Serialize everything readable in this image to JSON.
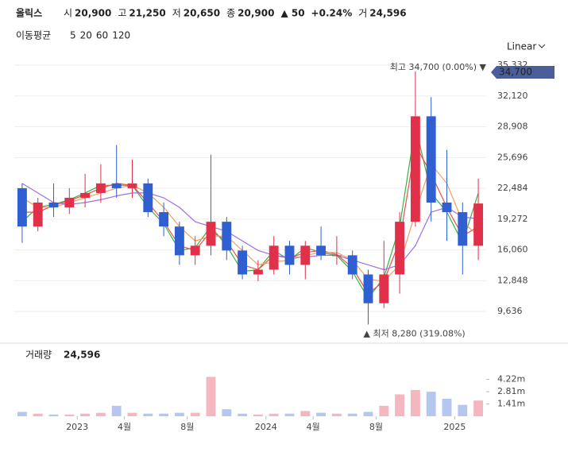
{
  "header": {
    "name": "올릭스",
    "open_label": "시",
    "open": "20,900",
    "high_label": "고",
    "high": "21,250",
    "low_label": "저",
    "low": "20,650",
    "close_label": "종",
    "close": "20,900",
    "change": "▲ 50",
    "change_pct": "+0.24%",
    "volume_label": "거",
    "volume": "24,596"
  },
  "scale_label": "Linear",
  "chart_data": {
    "type": "candlestick",
    "categories": [
      null,
      null,
      null,
      null,
      null,
      null,
      null,
      null,
      null,
      null,
      null,
      null,
      null,
      null,
      null,
      null,
      null,
      null,
      null,
      null,
      null,
      null,
      null,
      null,
      null,
      null,
      null,
      null,
      null,
      null
    ],
    "open": [
      22500,
      18500,
      21000,
      20500,
      21500,
      22000,
      23000,
      22500,
      23000,
      20000,
      18500,
      15500,
      16500,
      19000,
      16000,
      13500,
      14000,
      16500,
      14500,
      16500,
      15500,
      15500,
      13500,
      10500,
      13500,
      19000,
      30000,
      21000,
      20000,
      16500
    ],
    "high": [
      23000,
      21500,
      23000,
      22500,
      24000,
      25000,
      27000,
      25500,
      23500,
      21000,
      19000,
      17500,
      26000,
      19500,
      16500,
      15000,
      17500,
      17000,
      17000,
      18500,
      17500,
      16000,
      14000,
      17000,
      20000,
      34700,
      32000,
      26500,
      21000,
      23500
    ],
    "low": [
      16800,
      18000,
      19500,
      19800,
      20500,
      21000,
      21500,
      21500,
      19500,
      17500,
      14500,
      14500,
      15500,
      15000,
      13000,
      12800,
      13500,
      13500,
      13000,
      15000,
      14500,
      13000,
      8280,
      10000,
      11500,
      18500,
      19000,
      17000,
      13500,
      15000
    ],
    "close": [
      18500,
      21000,
      20500,
      21500,
      22000,
      23000,
      22500,
      23000,
      20000,
      18500,
      15500,
      16500,
      19000,
      16000,
      13500,
      14000,
      16500,
      14500,
      16500,
      15500,
      15500,
      13500,
      10500,
      13500,
      19000,
      30000,
      21000,
      20000,
      16500,
      20900
    ],
    "up_color": "#e0304a",
    "down_color": "#2f5fd0",
    "ma_title": "이동평균",
    "series": [
      {
        "name": "5",
        "color": "#3cb043",
        "values": [
          19000,
          20500,
          20800,
          21300,
          22000,
          22800,
          22800,
          22800,
          20500,
          18800,
          16000,
          16300,
          18500,
          16500,
          13800,
          14000,
          16000,
          15000,
          16300,
          15800,
          15500,
          13800,
          11000,
          13200,
          18500,
          29000,
          22000,
          20000,
          16800,
          22000
        ]
      },
      {
        "name": "20",
        "color": "#e8504a",
        "values": [
          20000,
          20000,
          20700,
          21200,
          21800,
          22500,
          23000,
          22800,
          21000,
          19000,
          16500,
          16000,
          18000,
          17000,
          14500,
          14000,
          15500,
          15200,
          15800,
          16000,
          15600,
          14200,
          11500,
          12800,
          17000,
          27000,
          24000,
          20500,
          17500,
          18500
        ]
      },
      {
        "name": "60",
        "color": "#f0a060",
        "values": [
          21500,
          20500,
          20500,
          21000,
          21500,
          22000,
          22500,
          22800,
          22000,
          20500,
          18500,
          17000,
          17500,
          17500,
          16000,
          14500,
          14800,
          15000,
          15500,
          15800,
          15800,
          15000,
          13000,
          12800,
          14500,
          20000,
          25000,
          23000,
          19000,
          17500
        ]
      },
      {
        "name": "120",
        "color": "#a070e0",
        "values": [
          23000,
          22000,
          21000,
          20800,
          21000,
          21300,
          21700,
          22000,
          22000,
          21500,
          20500,
          19000,
          18500,
          18000,
          17000,
          16000,
          15500,
          15300,
          15300,
          15500,
          15500,
          15000,
          14500,
          14000,
          14500,
          16500,
          20000,
          20500,
          19500,
          19300
        ]
      }
    ],
    "ylim": [
      6500,
      35500
    ],
    "yticks": [
      {
        "value": 9636,
        "label": "9,636"
      },
      {
        "value": 12848,
        "label": "12,848"
      },
      {
        "value": 16060,
        "label": "16,060"
      },
      {
        "value": 19272,
        "label": "19,272"
      },
      {
        "value": 22484,
        "label": "22,484"
      },
      {
        "value": 25696,
        "label": "25,696"
      },
      {
        "value": 28908,
        "label": "28,908"
      },
      {
        "value": 32120,
        "label": "32,120"
      },
      {
        "value": 35332,
        "label": "35,332"
      }
    ],
    "grid": true,
    "xticks": [
      {
        "value": 3.5,
        "label": "2023"
      },
      {
        "value": 6.5,
        "label": "4월"
      },
      {
        "value": 10.5,
        "label": "8월"
      },
      {
        "value": 15.5,
        "label": "2024"
      },
      {
        "value": 18.5,
        "label": "4월"
      },
      {
        "value": 22.5,
        "label": "8월"
      },
      {
        "value": 27.5,
        "label": "2025"
      }
    ],
    "max_annotation": "최고 34,700 (0.00%) ▼",
    "min_annotation": "▲ 최저 8,280 (319.08%)",
    "price_tag": "34,700",
    "volume": {
      "title": "거래량",
      "last": "24,596",
      "values": [
        500000,
        300000,
        200000,
        200000,
        300000,
        400000,
        1200000,
        400000,
        300000,
        300000,
        400000,
        400000,
        4500000,
        800000,
        300000,
        200000,
        300000,
        300000,
        600000,
        400000,
        300000,
        300000,
        500000,
        1200000,
        2500000,
        3000000,
        2800000,
        2000000,
        1300000,
        1800000
      ],
      "ylim": [
        0,
        6270000
      ],
      "yticks": [
        {
          "value": 1410000,
          "label": "1.41m"
        },
        {
          "value": 2810000,
          "label": "2.81m"
        },
        {
          "value": 4220000,
          "label": "4.22m"
        }
      ]
    }
  }
}
